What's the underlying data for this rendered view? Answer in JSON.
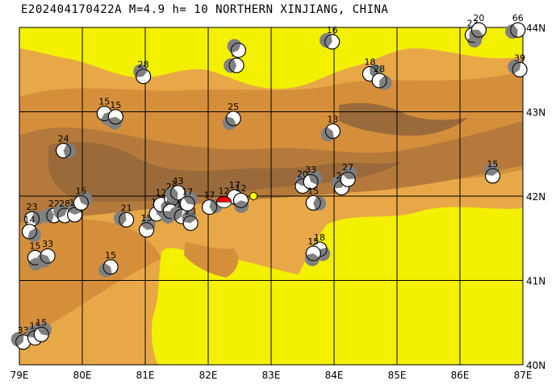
{
  "header": {
    "title": "E202404170422A  M=4.9  h= 10  NORTHERN XINJIANG, CHINA"
  },
  "map": {
    "lon_range": [
      79,
      87
    ],
    "lat_range": [
      40,
      44
    ],
    "lon_ticks": [
      "79E",
      "80E",
      "81E",
      "82E",
      "83E",
      "84E",
      "85E",
      "86E",
      "87E"
    ],
    "lat_ticks": [
      "40N",
      "41N",
      "42N",
      "43N",
      "44N"
    ],
    "colors": {
      "desert": "#f3f000",
      "lowland": "#e8a848",
      "upland": "#d58f3b",
      "mountain": "#b57a3b",
      "peak": "#9a6a3a",
      "grid": "#000000",
      "event_main": "#ff0000",
      "event_marker": "#ffff00",
      "beachball_dark": "#808080"
    },
    "main_event": {
      "lon": 82.25,
      "lat": 41.93,
      "depth_label": "12",
      "icon": "red-beachball-icon"
    },
    "epicenter_marker": {
      "lon": 82.72,
      "lat": 42.0,
      "icon": "yellow-hexagon-icon"
    },
    "events": [
      {
        "lon": 79.06,
        "lat": 40.27,
        "label": "33"
      },
      {
        "lon": 79.25,
        "lat": 40.32,
        "label": "15"
      },
      {
        "lon": 79.35,
        "lat": 40.36,
        "label": "15"
      },
      {
        "lon": 79.2,
        "lat": 41.73,
        "label": "23"
      },
      {
        "lon": 79.16,
        "lat": 41.58,
        "label": "14"
      },
      {
        "lon": 79.25,
        "lat": 41.27,
        "label": "15"
      },
      {
        "lon": 79.45,
        "lat": 41.29,
        "label": "33"
      },
      {
        "lon": 79.55,
        "lat": 41.77,
        "label": "22"
      },
      {
        "lon": 79.72,
        "lat": 41.77,
        "label": "28"
      },
      {
        "lon": 79.88,
        "lat": 41.78,
        "label": "13"
      },
      {
        "lon": 79.98,
        "lat": 41.92,
        "label": "15"
      },
      {
        "lon": 79.7,
        "lat": 42.54,
        "label": "24"
      },
      {
        "lon": 80.35,
        "lat": 42.98,
        "label": "15"
      },
      {
        "lon": 80.53,
        "lat": 42.94,
        "label": "15"
      },
      {
        "lon": 80.45,
        "lat": 41.16,
        "label": "15"
      },
      {
        "lon": 80.7,
        "lat": 41.72,
        "label": "21"
      },
      {
        "lon": 80.97,
        "lat": 43.42,
        "label": "28"
      },
      {
        "lon": 81.02,
        "lat": 41.6,
        "label": "15"
      },
      {
        "lon": 81.18,
        "lat": 41.79,
        "label": "15"
      },
      {
        "lon": 81.25,
        "lat": 41.9,
        "label": "12"
      },
      {
        "lon": 81.42,
        "lat": 41.97,
        "label": "28"
      },
      {
        "lon": 81.4,
        "lat": 41.82,
        "label": "14"
      },
      {
        "lon": 81.52,
        "lat": 42.04,
        "label": "43"
      },
      {
        "lon": 81.58,
        "lat": 41.76,
        "label": "17"
      },
      {
        "lon": 81.72,
        "lat": 41.68,
        "label": "23"
      },
      {
        "lon": 81.67,
        "lat": 41.91,
        "label": "17"
      },
      {
        "lon": 82.02,
        "lat": 41.87,
        "label": "17"
      },
      {
        "lon": 82.42,
        "lat": 41.99,
        "label": "17"
      },
      {
        "lon": 82.52,
        "lat": 41.95,
        "label": "12"
      },
      {
        "lon": 82.4,
        "lat": 42.92,
        "label": "25"
      },
      {
        "lon": 82.45,
        "lat": 43.55,
        "label": "37"
      },
      {
        "lon": 82.48,
        "lat": 43.73,
        "label": ""
      },
      {
        "lon": 83.5,
        "lat": 42.12,
        "label": "20"
      },
      {
        "lon": 83.63,
        "lat": 42.17,
        "label": "33"
      },
      {
        "lon": 83.67,
        "lat": 41.92,
        "label": "15"
      },
      {
        "lon": 83.77,
        "lat": 41.37,
        "label": "18"
      },
      {
        "lon": 83.67,
        "lat": 41.32,
        "label": "15"
      },
      {
        "lon": 83.98,
        "lat": 42.77,
        "label": "13"
      },
      {
        "lon": 83.97,
        "lat": 43.83,
        "label": "16"
      },
      {
        "lon": 84.12,
        "lat": 42.1,
        "label": "21"
      },
      {
        "lon": 84.22,
        "lat": 42.2,
        "label": "27"
      },
      {
        "lon": 84.57,
        "lat": 43.45,
        "label": "18"
      },
      {
        "lon": 84.72,
        "lat": 43.37,
        "label": "28"
      },
      {
        "lon": 86.2,
        "lat": 43.91,
        "label": "23"
      },
      {
        "lon": 86.3,
        "lat": 43.97,
        "label": "20"
      },
      {
        "lon": 86.92,
        "lat": 43.97,
        "label": "66"
      },
      {
        "lon": 86.95,
        "lat": 43.5,
        "label": "39"
      },
      {
        "lon": 86.52,
        "lat": 42.24,
        "label": "15"
      }
    ]
  }
}
